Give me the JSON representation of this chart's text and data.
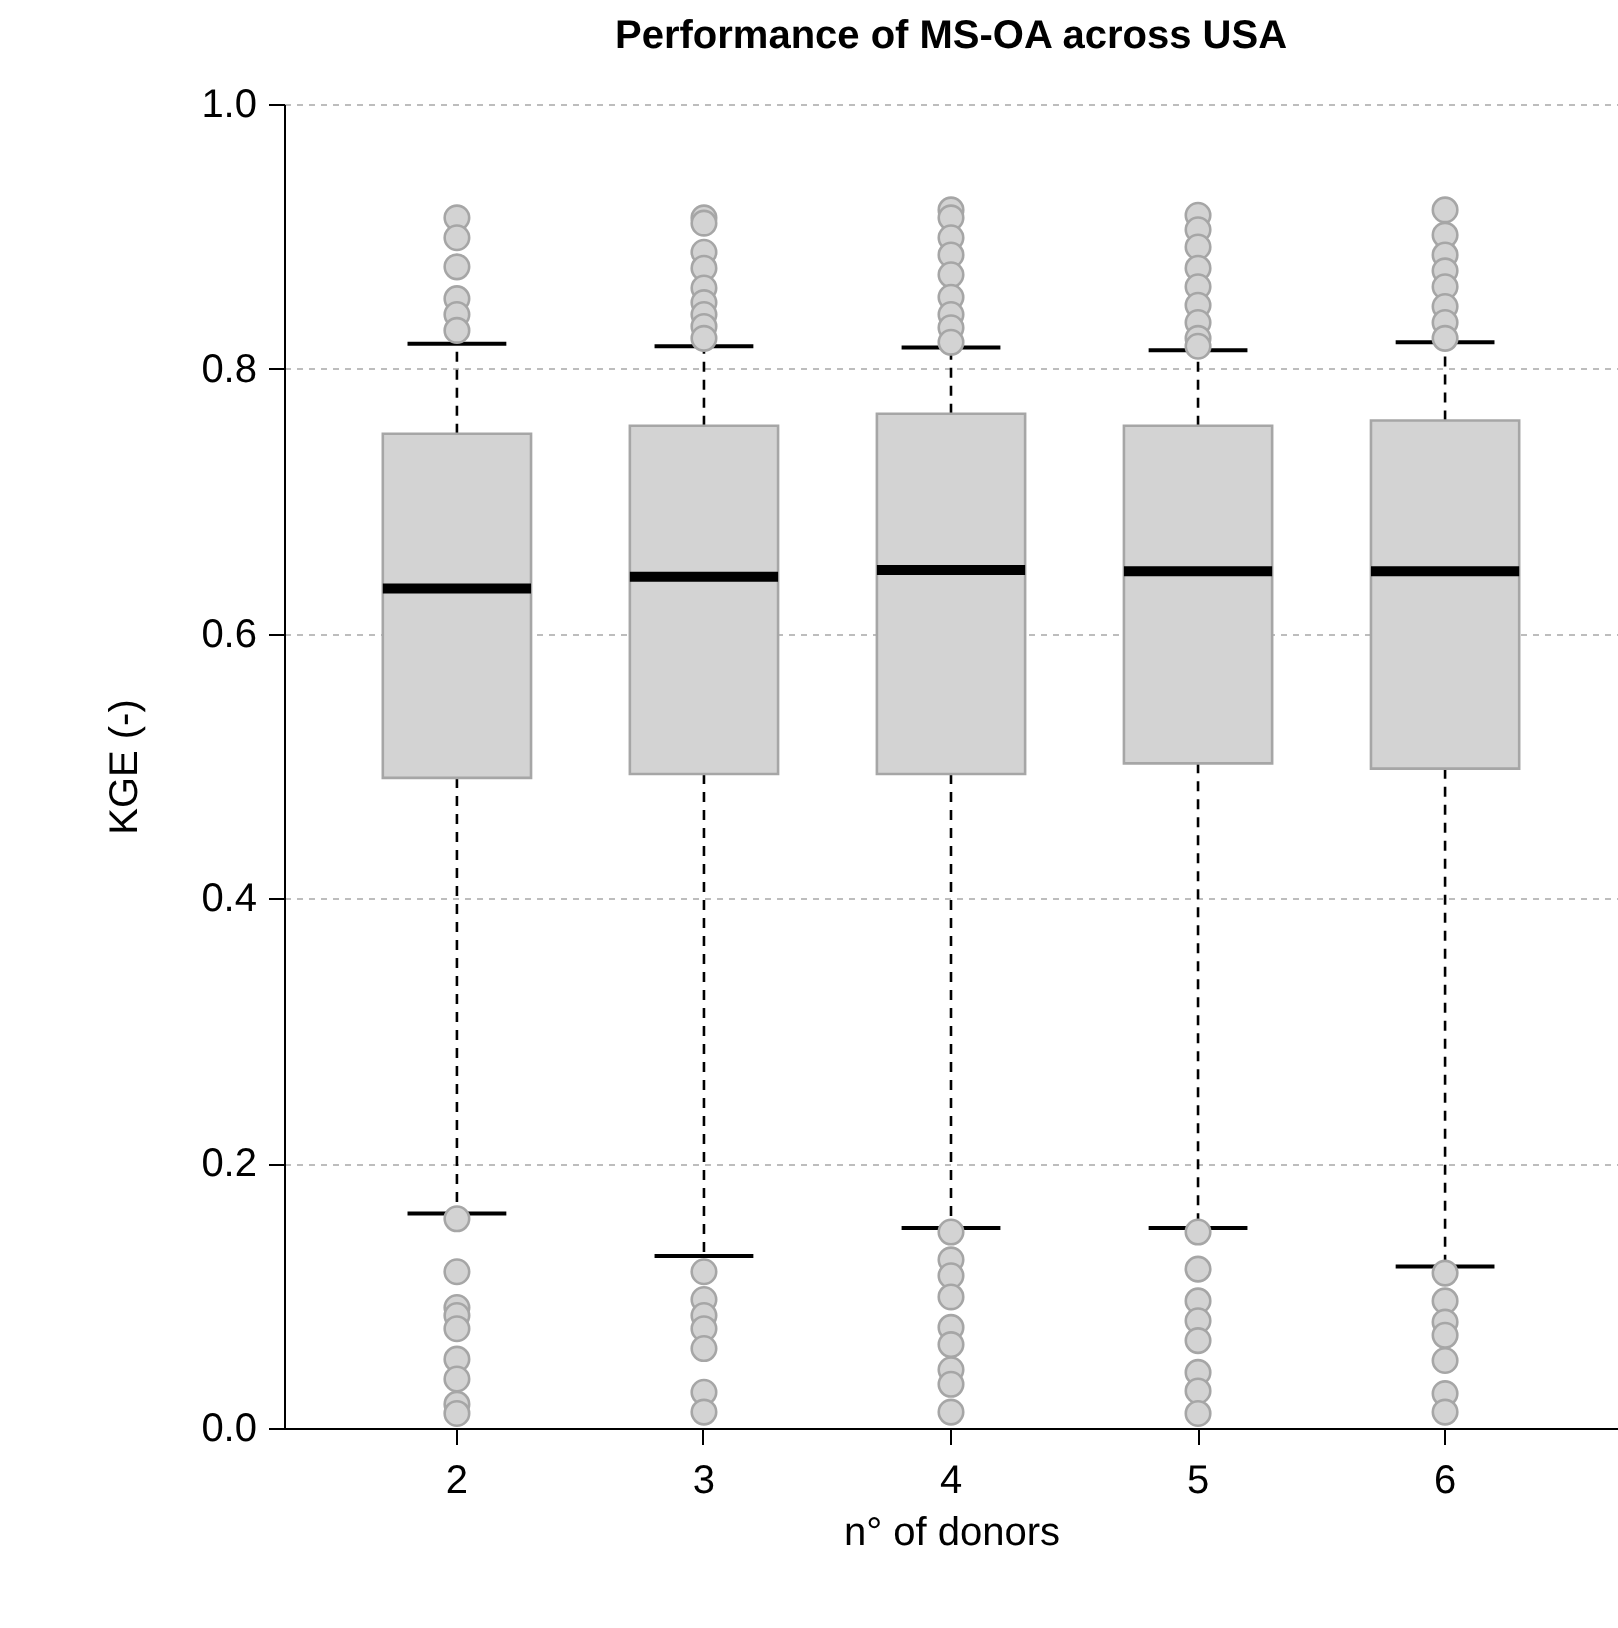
{
  "chart_data": {
    "type": "box",
    "title": "Performance of MS-OA across USA",
    "xlabel": "n° of donors",
    "ylabel": "KGE (-)",
    "categories": [
      "2",
      "3",
      "4",
      "5",
      "6"
    ],
    "ylim": [
      0,
      1
    ],
    "yticks": [
      {
        "value": 0,
        "label": "0.0"
      },
      0.2,
      0.4,
      0.6,
      0.8,
      {
        "value": 1,
        "label": "1.0"
      }
    ],
    "grid": "y",
    "series": [
      {
        "color": "#d3d3d3",
        "boxes": [
          {
            "low": 0.162,
            "q1": 0.491,
            "median": 0.634,
            "q3": 0.751,
            "high": 0.819,
            "outliers": [
              0.914,
              0.899,
              0.877,
              0.853,
              0.841,
              0.829,
              0.158,
              0.118,
              0.091,
              0.085,
              0.075,
              0.052,
              0.037,
              0.018,
              0.011
            ]
          },
          {
            "low": 0.13,
            "q1": 0.494,
            "median": 0.643,
            "q3": 0.757,
            "high": 0.817,
            "outliers": [
              0.914,
              0.91,
              0.888,
              0.876,
              0.861,
              0.85,
              0.841,
              0.832,
              0.823,
              0.118,
              0.097,
              0.085,
              0.075,
              0.06,
              0.027,
              0.012
            ]
          },
          {
            "low": 0.151,
            "q1": 0.494,
            "median": 0.648,
            "q3": 0.766,
            "high": 0.816,
            "outliers": [
              0.92,
              0.914,
              0.899,
              0.886,
              0.871,
              0.854,
              0.841,
              0.831,
              0.82,
              0.148,
              0.127,
              0.115,
              0.099,
              0.076,
              0.063,
              0.044,
              0.033,
              0.012
            ]
          },
          {
            "low": 0.151,
            "q1": 0.502,
            "median": 0.647,
            "q3": 0.757,
            "high": 0.814,
            "outliers": [
              0.916,
              0.905,
              0.892,
              0.876,
              0.862,
              0.848,
              0.835,
              0.823,
              0.817,
              0.148,
              0.12,
              0.096,
              0.081,
              0.066,
              0.042,
              0.028,
              0.011
            ]
          },
          {
            "low": 0.122,
            "q1": 0.498,
            "median": 0.647,
            "q3": 0.761,
            "high": 0.82,
            "outliers": [
              0.92,
              0.901,
              0.886,
              0.874,
              0.862,
              0.847,
              0.835,
              0.823,
              0.117,
              0.096,
              0.08,
              0.07,
              0.051,
              0.026,
              0.012
            ]
          }
        ]
      }
    ]
  }
}
